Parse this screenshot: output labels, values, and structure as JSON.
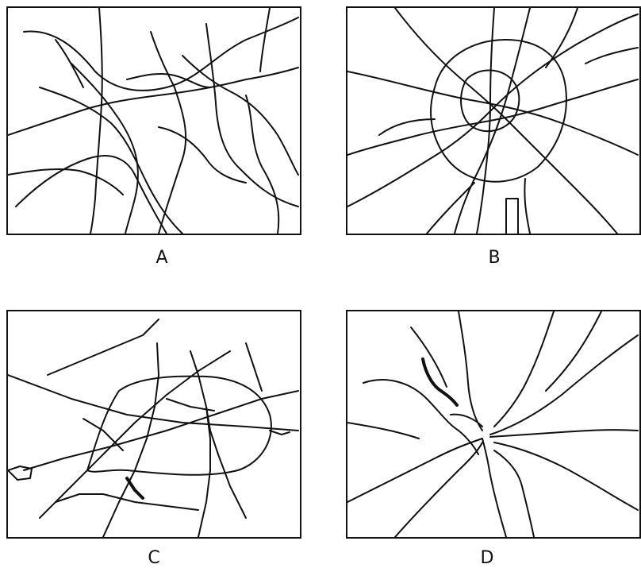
{
  "panels": [
    {
      "id": "A",
      "label": "A"
    },
    {
      "id": "B",
      "label": "B"
    },
    {
      "id": "C",
      "label": "C"
    },
    {
      "id": "D",
      "label": "D"
    }
  ]
}
